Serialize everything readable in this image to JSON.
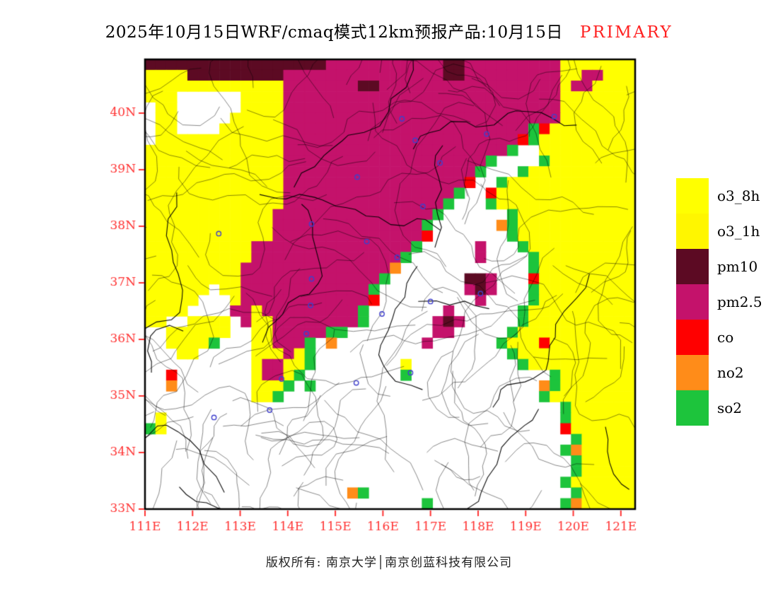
{
  "title": {
    "main": "2025年10月15日WRF/cmaq模式12km预报产品:10月15日",
    "primary": "PRIMARY"
  },
  "footer": {
    "copyright": "版权所有: 南京大学│南京创蓝科技有限公司"
  },
  "colors": {
    "axis_label": "#ff3333",
    "primary_label": "#ff2222",
    "frame": "#000000",
    "county_line": "#000000",
    "marker": "#4040cc"
  },
  "legend": {
    "items": [
      {
        "label": "o3_8h",
        "color": "#ffff00"
      },
      {
        "label": "o3_1h",
        "color": "#fff600"
      },
      {
        "label": "pm10",
        "color": "#5c0a23"
      },
      {
        "label": "pm2.5",
        "color": "#c4126b"
      },
      {
        "label": "co",
        "color": "#ff0000"
      },
      {
        "label": "no2",
        "color": "#ff8c19"
      },
      {
        "label": "so2",
        "color": "#1dc43c"
      }
    ]
  },
  "map": {
    "lon_ticks": [
      "111E",
      "112E",
      "113E",
      "114E",
      "115E",
      "116E",
      "117E",
      "118E",
      "119E",
      "120E",
      "121E"
    ],
    "lat_ticks": [
      "33N",
      "34N",
      "35N",
      "36N",
      "37N",
      "38N",
      "39N",
      "40N"
    ],
    "lon_range": [
      111,
      121.3
    ],
    "lat_range": [
      33,
      40.95
    ],
    "palette": {
      ".": "#ffffff",
      "Y": "#ffff00",
      "M": "#c4126b",
      "D": "#5c0a23",
      "R": "#ff0000",
      "O": "#ff8c19",
      "G": "#1dc43c"
    },
    "grid": [
      "DDDDDDDDDDDDDDDDDMMMMMMMMMMMDDMMMMMMMMMYYYYYYY",
      "YYYYDDDDDDDDDMMMMMMMMMMMMMMMDDMMMMMMMMMYYMMYYY",
      "YYYYYYYYYYYYYMMMMMMMDDMMMMMMMMMMMMMMMMMYMMYYYY",
      "YYY......YYYYMMMMMMMMMMMMMMMMMMMMMMMMMMYYYYYYY",
      ".YY......YYYYMMMMMMMMMMMMMMMMMMMMMMMMMMYYYYYYY",
      ".YY.....YYYYYMMMMMMMMMMMMMMMMMMMMMMMMMMYYYYYYY",
      ".YY....YYYYYYMMMMMMMMMMMMMMMMMMMMMMMGRYYYYYYYY",
      ".YYYYYYYYYYYYMMMMMMMMMMMMMMMMMMMMMMRGYYYYYYYYY",
      "YYYYYYYYYYYYYMMMMMMMMMMMMMMMMMMMMMG..YYYYYYYYY",
      "YYYYYYYYYYYYYMMMMMMMMMMMMMMMMMMMG....GYYYYYYYY",
      "YYYYYYYYYYYYYMMMMMMMMMMMMMMMMMMG...GYYYYYYYYYY",
      "YYYYYYYYYYYYYMMMMMMMMMMMMMMMMMR..GYYYYYYYYYYYY",
      "YYYYYYYYYYYYYMMMMMMMMMMMMMMMMG..RYYYYYYYYYYYYY",
      "YYYYYYYYYYYYYMMMMMMMMMMMMMMMG...GYYYYYYYYYYYYY",
      "YYYYYYYYYYYYMMMMMMMMMMMMMMMG......GYYYYYYYYYYY",
      "YYYYYYYYYYYYMMMMMMMMMMMMMMG......OGYYYYYYYYYYY",
      "YYYYYYYYYYYYMMMMMMMMMMMMMMR.......GYYYYYYYYYYY",
      "YYYYYYYYYYMMMMMMMMMMMMMMMG.....M...GYYYYYYYYYY",
      "YYYYYYYYYYMMMMMMMMMMMMMMG......M....GYYYYYYYYY",
      "YYYYYYYYYMMMMMMMMMMMMMMO............GYYYYYYYYY",
      "YYYYYYYYYMMMMMMMMMMMMMG.......DDM...RYYYYYYYYY",
      "YYYYYY.YYMMMMMMMMMMMMG........MDM...GYYYYYYYYY",
      "YYYYY...YMMMMMMMMMMMMR.........M....GYYYYYYYYY",
      "YYYY....MMYMMMMMMMMMG.......M......GYYYYYYYYYY",
      "YY..YYYY.MYYMMMMMMMMG......MDM.....GYYYYYYYYYY",
      "..YYYYYY..YYMMMMMGG........MM.....GYYYYYYYYYYY",
      "..YYYYG...YYMMMG.O........M......GYYYRYYYYYYYY",
      "...YY.....YYYMYG..................GYYYYYYYYYYY",
      "..........YMMYYG........Y..........GYYYYYYYYYY",
      "..R.......YMMYG.........G.............GYYYYYYY",
      "..O.......YYYG.G.....................OGYYYYYYY",
      "..........YYG........................GYYYYYYYY",
      ".......................................GYYYYYY",
      ".Y.....................................GYYYYYY",
      "GY.....................................RYYYYYY",
      "........................................GYYYYY",
      ".......................................GOYYYYY",
      "........................................GYYYYY",
      "........................................GYYYYY",
      ".......................................GYYYYYY",
      "...................OG...................GYYYYY",
      "..........................G............GOYYYYY"
    ],
    "city_markers": [
      [
        116.4,
        39.9
      ],
      [
        117.2,
        39.12
      ],
      [
        118.18,
        39.63
      ],
      [
        119.6,
        39.94
      ],
      [
        116.68,
        39.52
      ],
      [
        115.46,
        38.87
      ],
      [
        114.5,
        38.04
      ],
      [
        112.55,
        37.87
      ],
      [
        116.84,
        38.35
      ],
      [
        115.66,
        37.73
      ],
      [
        116.3,
        37.45
      ],
      [
        114.5,
        37.07
      ],
      [
        117.0,
        36.67
      ],
      [
        118.05,
        36.81
      ],
      [
        114.48,
        36.6
      ],
      [
        114.39,
        36.1
      ],
      [
        115.98,
        36.45
      ],
      [
        113.87,
        35.3
      ],
      [
        115.44,
        35.23
      ],
      [
        116.58,
        35.41
      ],
      [
        113.62,
        34.75
      ],
      [
        112.45,
        34.62
      ]
    ]
  }
}
